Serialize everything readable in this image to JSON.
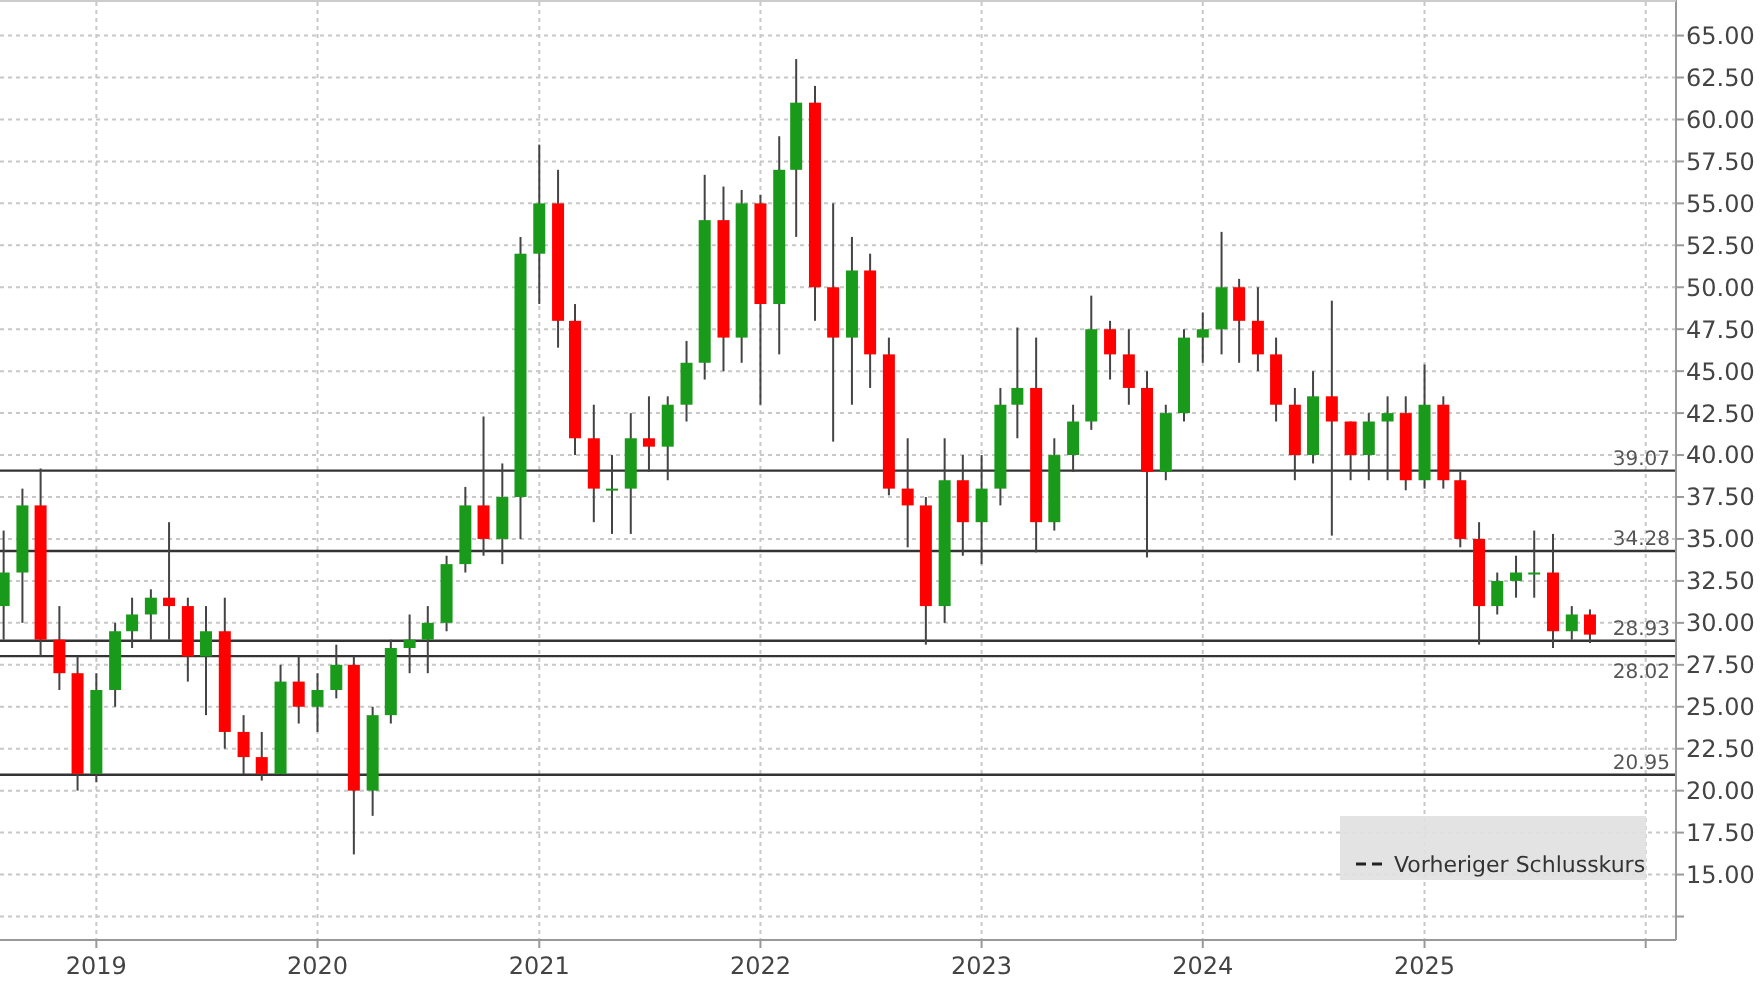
{
  "chart_data": {
    "type": "candlestick",
    "x": [
      "2018-08",
      "2018-09",
      "2018-10",
      "2018-11",
      "2018-12",
      "2019-01",
      "2019-02",
      "2019-03",
      "2019-04",
      "2019-05",
      "2019-06",
      "2019-07",
      "2019-08",
      "2019-09",
      "2019-10",
      "2019-11",
      "2019-12",
      "2020-01",
      "2020-02",
      "2020-03",
      "2020-04",
      "2020-05",
      "2020-06",
      "2020-07",
      "2020-08",
      "2020-09",
      "2020-10",
      "2020-11",
      "2020-12",
      "2021-01",
      "2021-02",
      "2021-03",
      "2021-04",
      "2021-05",
      "2021-06",
      "2021-07",
      "2021-08",
      "2021-09",
      "2021-10",
      "2021-11",
      "2021-12",
      "2022-01",
      "2022-02",
      "2022-03",
      "2022-04",
      "2022-05",
      "2022-06",
      "2022-07",
      "2022-08",
      "2022-09",
      "2022-10",
      "2022-11",
      "2022-12",
      "2023-01",
      "2023-02",
      "2023-03",
      "2023-04",
      "2023-05",
      "2023-06",
      "2023-07",
      "2023-08",
      "2023-09",
      "2023-10",
      "2023-11",
      "2023-12",
      "2024-01",
      "2024-02",
      "2024-03",
      "2024-04",
      "2024-05",
      "2024-06",
      "2024-07",
      "2024-08",
      "2024-09",
      "2024-10",
      "2024-11",
      "2024-12",
      "2025-01",
      "2025-02",
      "2025-03",
      "2025-04",
      "2025-05",
      "2025-06",
      "2025-07",
      "2025-08",
      "2025-09",
      "2025-10"
    ],
    "ohlc": [
      [
        31,
        35.5,
        29,
        33
      ],
      [
        33,
        38,
        30,
        37
      ],
      [
        37,
        39.2,
        28,
        29
      ],
      [
        29,
        31,
        26,
        27
      ],
      [
        27,
        28,
        20,
        21
      ],
      [
        21,
        27,
        20.5,
        26
      ],
      [
        26,
        30,
        25,
        29.5
      ],
      [
        29.5,
        31.5,
        28.5,
        30.5
      ],
      [
        30.5,
        32,
        29,
        31.5
      ],
      [
        31.5,
        36,
        29,
        31
      ],
      [
        31,
        31.5,
        26.5,
        28
      ],
      [
        28,
        31,
        24.5,
        29.5
      ],
      [
        29.5,
        31.5,
        22.5,
        23.5
      ],
      [
        23.5,
        24.5,
        21,
        22
      ],
      [
        22,
        23.5,
        20.6,
        21
      ],
      [
        21,
        27.5,
        21,
        26.5
      ],
      [
        26.5,
        28,
        24,
        25
      ],
      [
        25,
        27,
        23.5,
        26
      ],
      [
        26,
        28.7,
        25.5,
        27.5
      ],
      [
        27.5,
        28,
        16.2,
        20
      ],
      [
        20,
        25,
        18.5,
        24.5
      ],
      [
        24.5,
        29,
        24,
        28.5
      ],
      [
        28.5,
        30.5,
        27,
        29
      ],
      [
        29,
        31,
        27,
        30
      ],
      [
        30,
        34,
        29.5,
        33.5
      ],
      [
        33.5,
        38.1,
        33,
        37
      ],
      [
        37,
        42.3,
        34,
        35
      ],
      [
        35,
        39.5,
        33.5,
        37.5
      ],
      [
        37.5,
        53,
        35,
        52
      ],
      [
        52,
        58.5,
        49,
        55
      ],
      [
        55,
        57,
        46.4,
        48
      ],
      [
        48,
        49,
        40,
        41
      ],
      [
        41,
        43,
        36,
        38
      ],
      [
        38,
        40,
        35.3,
        38
      ],
      [
        38,
        42.5,
        35.3,
        41
      ],
      [
        41,
        43.5,
        39,
        40.5
      ],
      [
        40.5,
        43.5,
        38.5,
        43
      ],
      [
        43,
        46.8,
        42,
        45.5
      ],
      [
        45.5,
        56.7,
        44.5,
        54
      ],
      [
        54,
        56,
        45,
        47
      ],
      [
        47,
        55.8,
        45.5,
        55
      ],
      [
        55,
        55.5,
        43,
        49
      ],
      [
        49,
        59,
        46,
        57
      ],
      [
        57,
        63.6,
        53,
        61
      ],
      [
        61,
        62,
        48,
        50
      ],
      [
        50,
        55,
        40.8,
        47
      ],
      [
        47,
        53,
        43,
        51
      ],
      [
        51,
        52,
        44,
        46
      ],
      [
        46,
        47,
        37.6,
        38
      ],
      [
        38,
        41,
        34.5,
        37
      ],
      [
        37,
        37.5,
        28.7,
        31
      ],
      [
        31,
        41,
        30,
        38.5
      ],
      [
        38.5,
        40,
        34,
        36
      ],
      [
        36,
        40,
        33.5,
        38
      ],
      [
        38,
        44,
        37,
        43
      ],
      [
        43,
        47.6,
        41,
        44
      ],
      [
        44,
        47,
        34.2,
        36
      ],
      [
        36,
        41,
        35.5,
        40
      ],
      [
        40,
        43,
        39,
        42
      ],
      [
        42,
        49.5,
        41.5,
        47.5
      ],
      [
        47.5,
        48,
        44.5,
        46
      ],
      [
        46,
        47.5,
        43,
        44
      ],
      [
        44,
        45,
        33.9,
        39
      ],
      [
        39,
        43,
        38.5,
        42.5
      ],
      [
        42.5,
        47.5,
        42,
        47
      ],
      [
        47,
        48.5,
        45.5,
        47.5
      ],
      [
        47.5,
        53.3,
        46,
        50
      ],
      [
        50,
        50.5,
        45.5,
        48
      ],
      [
        48,
        50,
        45,
        46
      ],
      [
        46,
        47,
        42,
        43
      ],
      [
        43,
        44,
        38.5,
        40
      ],
      [
        40,
        45,
        39.5,
        43.5
      ],
      [
        43.5,
        49.2,
        35.2,
        42
      ],
      [
        42,
        42,
        38.5,
        40
      ],
      [
        40,
        42.5,
        38.5,
        42
      ],
      [
        42,
        43.5,
        38.5,
        42.5
      ],
      [
        42.5,
        43.5,
        37.9,
        38.5
      ],
      [
        38.5,
        45.4,
        38,
        43
      ],
      [
        43,
        43.5,
        38,
        38.5
      ],
      [
        38.5,
        39,
        34.5,
        35
      ],
      [
        35,
        36,
        28.7,
        31
      ],
      [
        31,
        33,
        30.5,
        32.5
      ],
      [
        32.5,
        34,
        31.5,
        33
      ],
      [
        33,
        35.5,
        31.5,
        33
      ],
      [
        33,
        35.3,
        28.5,
        29.5
      ],
      [
        29.5,
        31,
        29,
        30.5
      ],
      [
        30.5,
        30.8,
        28.8,
        29.3
      ]
    ],
    "xlim": [
      "2018-07-26",
      "2026-02-20"
    ],
    "xticks": [
      {
        "value": "2019-01-01",
        "label": "2019"
      },
      {
        "value": "2020-01-01",
        "label": "2020"
      },
      {
        "value": "2021-01-01",
        "label": "2021"
      },
      {
        "value": "2022-01-01",
        "label": "2022"
      },
      {
        "value": "2023-01-01",
        "label": "2023"
      },
      {
        "value": "2024-01-01",
        "label": "2024"
      },
      {
        "value": "2025-01-01",
        "label": "2025"
      },
      {
        "value": "2026-01-01",
        "label": null
      }
    ],
    "ylim": [
      11.1,
      67
    ],
    "yticks": [
      {
        "value": 12.5,
        "label": null
      },
      {
        "value": 15,
        "label": "15.00"
      },
      {
        "value": 17.5,
        "label": "17.50"
      },
      {
        "value": 20,
        "label": "20.00"
      },
      {
        "value": 22.5,
        "label": "22.50"
      },
      {
        "value": 25,
        "label": "25.00"
      },
      {
        "value": 27.5,
        "label": "27.50"
      },
      {
        "value": 30,
        "label": "30.00"
      },
      {
        "value": 32.5,
        "label": "32.50"
      },
      {
        "value": 35,
        "label": "35.00"
      },
      {
        "value": 37.5,
        "label": "37.50"
      },
      {
        "value": 40,
        "label": "40.00"
      },
      {
        "value": 42.5,
        "label": "42.50"
      },
      {
        "value": 45,
        "label": "45.00"
      },
      {
        "value": 47.5,
        "label": "47.50"
      },
      {
        "value": 50,
        "label": "50.00"
      },
      {
        "value": 52.5,
        "label": "52.50"
      },
      {
        "value": 55,
        "label": "55.00"
      },
      {
        "value": 57.5,
        "label": "57.50"
      },
      {
        "value": 60,
        "label": "60.00"
      },
      {
        "value": 62.5,
        "label": "62.50"
      },
      {
        "value": 65,
        "label": "65.00"
      }
    ],
    "grid": true,
    "ref_lines": [
      {
        "axis": "y",
        "value": 39.07,
        "label": "39.07",
        "color": "#333333"
      },
      {
        "axis": "y",
        "value": 34.28,
        "label": "34.28",
        "color": "#333333"
      },
      {
        "axis": "y",
        "value": 28.93,
        "label": "28.93",
        "color": "#333333"
      },
      {
        "axis": "y",
        "value": 28.02,
        "label": "28.02",
        "color": "#333333"
      },
      {
        "axis": "y",
        "value": 20.95,
        "label": "20.95",
        "color": "#333333"
      }
    ],
    "annotations": [
      "Vorheriger Schlusskurs"
    ]
  }
}
